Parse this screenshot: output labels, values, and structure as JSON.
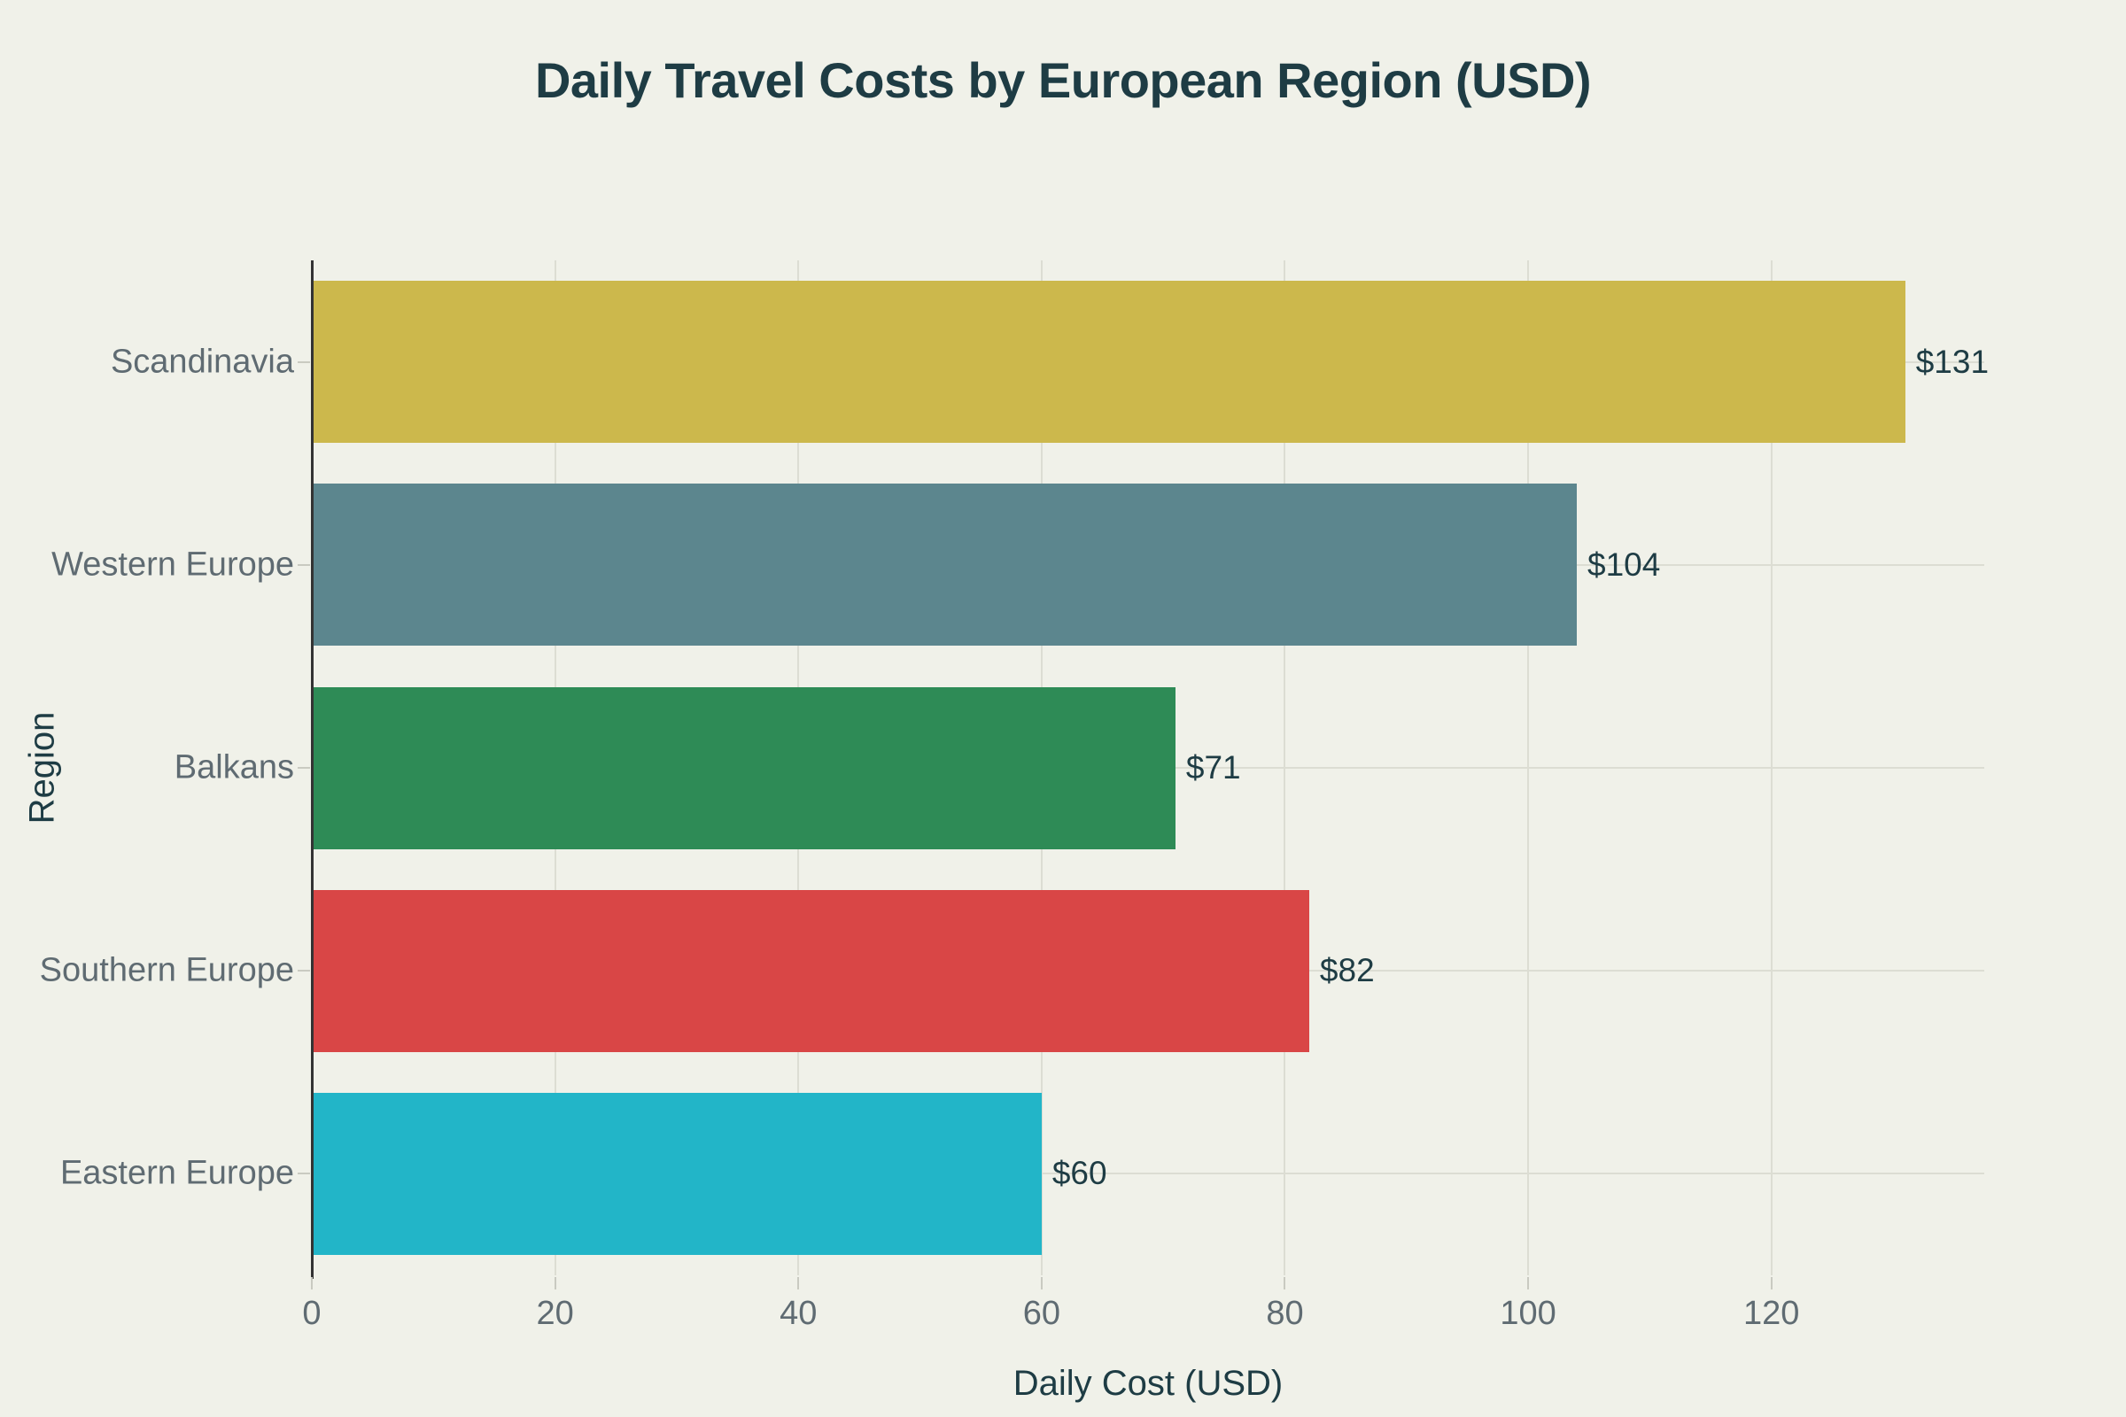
{
  "title": "Daily Travel Costs by European Region (USD)",
  "chart_data": {
    "type": "bar",
    "orientation": "horizontal",
    "title": "Daily Travel Costs by European Region (USD)",
    "categories": [
      "Scandinavia",
      "Western Europe",
      "Balkans",
      "Southern Europe",
      "Eastern Europe"
    ],
    "values": [
      131,
      104,
      71,
      82,
      60
    ],
    "value_labels": [
      "$131",
      "$104",
      "$71",
      "$82",
      "$60"
    ],
    "bar_colors": [
      "#ccb84c",
      "#5c868e",
      "#2e8b56",
      "#d94646",
      "#22b5c8"
    ],
    "xlabel": "Daily Cost (USD)",
    "ylabel": "Region",
    "xlim": [
      0,
      137.5
    ],
    "xticks": [
      0,
      20,
      40,
      60,
      80,
      100,
      120
    ],
    "grid": true,
    "legend": "none"
  },
  "colors": {
    "background": "#f0f1e9",
    "title_text": "#1e3c44",
    "tick_text": "#5f6b72",
    "gridline": "#dcddd3",
    "axis_line": "#333333"
  }
}
